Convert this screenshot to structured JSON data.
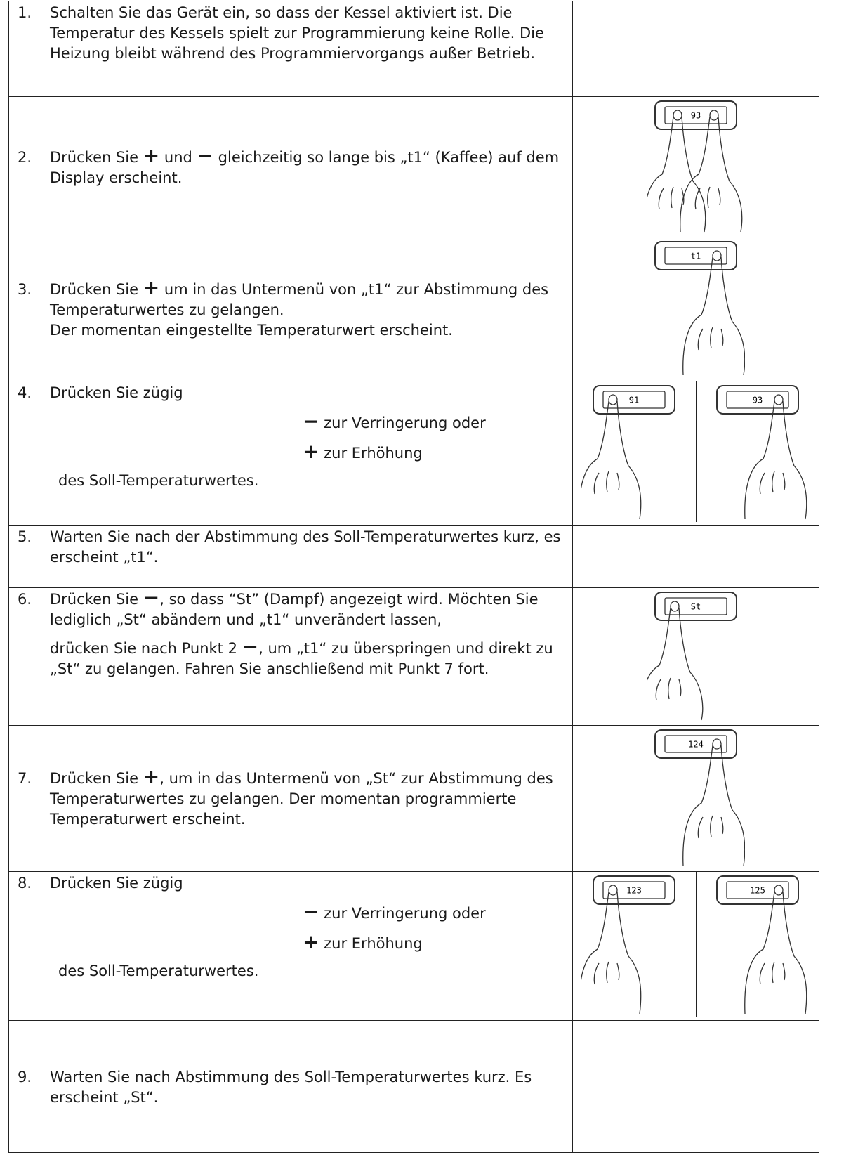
{
  "steps": [
    {
      "number": "1.",
      "paragraphs": [
        [
          "Schalten Sie das Gerät ein, so dass der Kessel aktiviert ist. Die Temperatur des Kessels spielt zur Programmierung keine Rolle. Die Heizung bleibt während des Programmiervorgangs außer Betrieb."
        ]
      ]
    },
    {
      "number": "2.",
      "paragraphs": [
        [
          "Drücken Sie ",
          "+",
          " und ",
          "−",
          " gleichzeitig so lange bis „t1“ (Kaffee) auf dem Display erscheint."
        ]
      ],
      "images": [
        {
          "display": "93"
        }
      ]
    },
    {
      "number": "3.",
      "paragraphs": [
        [
          "Drücken Sie ",
          "+",
          " um in das Untermenü von „t1“ zur Abstimmung des Temperaturwertes zu gelangen."
        ],
        [
          "Der momentan eingestellte Temperaturwert erscheint."
        ]
      ],
      "images": [
        {
          "display": "t1"
        }
      ]
    },
    {
      "number": "4.",
      "paragraphs": [
        [
          "Drücken Sie zügig"
        ],
        [
          "−",
          " zur Verringerung oder"
        ],
        [
          "+",
          " zur Erhöhung"
        ],
        [
          "des Soll-Temperaturwertes."
        ]
      ],
      "images": [
        {
          "display": "91"
        },
        {
          "display": "93"
        }
      ]
    },
    {
      "number": "5.",
      "paragraphs": [
        [
          "Warten Sie nach der Abstimmung des Soll-Temperaturwertes kurz, es erscheint „t1“."
        ]
      ]
    },
    {
      "number": "6.",
      "paragraphs": [
        [
          "Drücken Sie ",
          "−",
          ", so dass “St” (Dampf) angezeigt wird. Möchten Sie lediglich „St“ abändern und „t1“ unverändert lassen,"
        ],
        [
          "drücken Sie nach Punkt 2 ",
          "−",
          ", um „t1“ zu überspringen und direkt zu „St“ zu gelangen. Fahren Sie anschließend mit Punkt 7 fort."
        ]
      ],
      "images": [
        {
          "display": "St"
        }
      ]
    },
    {
      "number": "7.",
      "paragraphs": [
        [
          "Drücken Sie ",
          "+",
          ", um in das Untermenü von „St“ zur Abstimmung des Temperaturwertes zu gelangen. Der momentan programmierte Temperaturwert erscheint."
        ]
      ],
      "images": [
        {
          "display": "124"
        }
      ]
    },
    {
      "number": "8.",
      "paragraphs": [
        [
          "Drücken Sie zügig"
        ],
        [
          "−",
          " zur Verringerung oder"
        ],
        [
          "+",
          " zur Erhöhung"
        ],
        [
          "des Soll-Temperaturwertes."
        ]
      ],
      "images": [
        {
          "display": "123"
        },
        {
          "display": "125"
        }
      ]
    },
    {
      "number": "9.",
      "paragraphs": [
        [
          "Warten Sie nach Abstimmung des Soll-Temperaturwertes kurz. Es erscheint „St“."
        ]
      ]
    }
  ]
}
